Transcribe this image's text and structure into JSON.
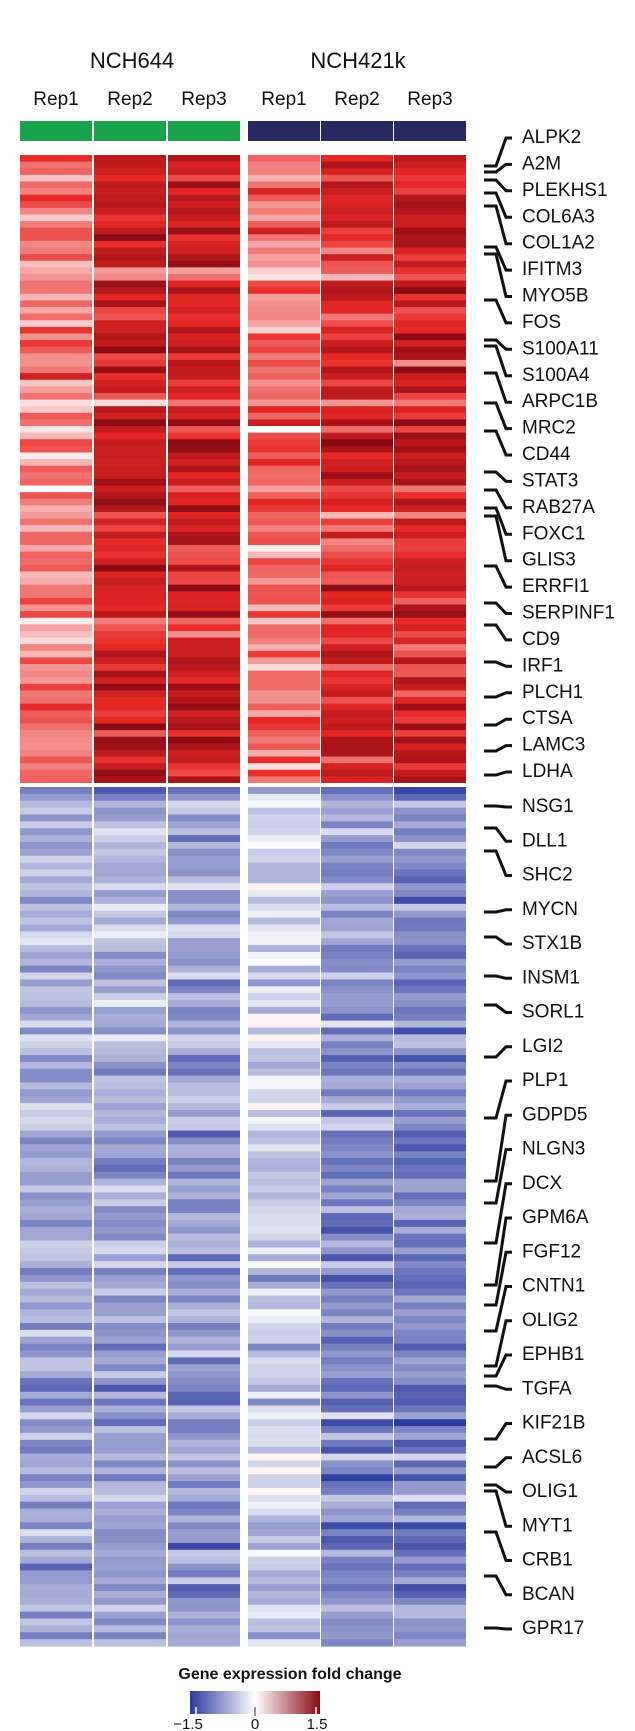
{
  "chart_data": {
    "type": "heatmap",
    "groups": [
      {
        "name": "NCH644",
        "color": "#1aa34a",
        "replicates": [
          "Rep1",
          "Rep2",
          "Rep3"
        ]
      },
      {
        "name": "NCH421k",
        "color": "#262a61",
        "replicates": [
          "Rep1",
          "Rep2",
          "Rep3"
        ]
      }
    ],
    "up_genes": [
      "ALPK2",
      "A2M",
      "PLEKHS1",
      "COL6A3",
      "COL1A2",
      "IFITM3",
      "MYO5B",
      "FOS",
      "S100A11",
      "S100A4",
      "ARPC1B",
      "MRC2",
      "CD44",
      "STAT3",
      "RAB27A",
      "FOXC1",
      "GLIS3",
      "ERRFI1",
      "SERPINF1",
      "CD9",
      "IRF1",
      "PLCH1",
      "CTSA",
      "LAMC3",
      "LDHA"
    ],
    "down_genes": [
      "NSG1",
      "DLL1",
      "SHC2",
      "MYCN",
      "STX1B",
      "INSM1",
      "SORL1",
      "LGI2",
      "PLP1",
      "GDPD5",
      "NLGN3",
      "DCX",
      "GPM6A",
      "FGF12",
      "CNTN1",
      "OLIG2",
      "EPHB1",
      "TGFA",
      "KIF21B",
      "ACSL6",
      "OLIG1",
      "MYT1",
      "CRB1",
      "BCAN",
      "GPR17"
    ],
    "up_column_means": [
      0.55,
      1.05,
      1.1,
      0.6,
      1.0,
      1.05
    ],
    "down_column_means": [
      -0.65,
      -0.7,
      -0.75,
      -0.35,
      -0.85,
      -0.9
    ],
    "colorbar": {
      "title": "Gene expression fold change",
      "min": -1.5,
      "mid": 0,
      "max": 1.5,
      "tick_labels": [
        "−1.5",
        "0",
        "1.5"
      ],
      "colors": {
        "low": "#2b3aa0",
        "mid": "#ffffff",
        "high": "#8b0a14"
      }
    }
  }
}
